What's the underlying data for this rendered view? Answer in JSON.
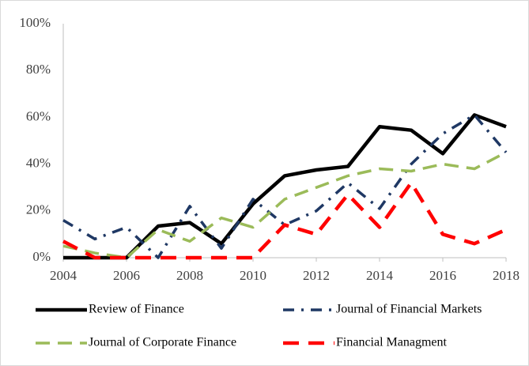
{
  "chart_data": {
    "type": "line",
    "x": [
      2004,
      2005,
      2006,
      2007,
      2008,
      2009,
      2010,
      2011,
      2012,
      2013,
      2014,
      2015,
      2016,
      2017,
      2018
    ],
    "xlim": [
      2004,
      2018
    ],
    "xticks": [
      2004,
      2006,
      2008,
      2010,
      2012,
      2014,
      2016,
      2018
    ],
    "ylim": [
      0,
      100
    ],
    "yticks": [
      {
        "value": 0,
        "label": "0%"
      },
      {
        "value": 20,
        "label": "20%"
      },
      {
        "value": 40,
        "label": "40%"
      },
      {
        "value": 60,
        "label": "60%"
      },
      {
        "value": 80,
        "label": "80%"
      },
      {
        "value": 100,
        "label": "100%"
      }
    ],
    "grid": false,
    "legend": "bottom",
    "series": [
      {
        "name": "Review of Finance",
        "color": "#000000",
        "values": [
          0,
          0,
          0,
          13.5,
          15,
          6,
          23,
          35,
          37.5,
          39,
          56,
          54.5,
          44.5,
          61,
          56
        ]
      },
      {
        "name": "Journal of Financial Markets",
        "color": "#1f3864",
        "values": [
          16,
          8,
          13,
          0,
          22,
          4,
          25,
          14,
          20,
          32,
          21,
          40,
          53,
          61,
          45
        ]
      },
      {
        "name": "Journal of Corporate Finance",
        "color": "#9bbb59",
        "values": [
          5,
          2,
          0,
          12,
          7,
          17,
          13,
          25,
          30,
          35,
          38,
          37,
          40,
          38,
          45
        ]
      },
      {
        "name": "Financial Managment",
        "color": "#ff0000",
        "values": [
          7,
          0,
          0,
          0,
          0,
          0,
          0,
          14,
          10,
          27,
          13,
          32,
          10,
          6,
          12
        ]
      }
    ]
  }
}
